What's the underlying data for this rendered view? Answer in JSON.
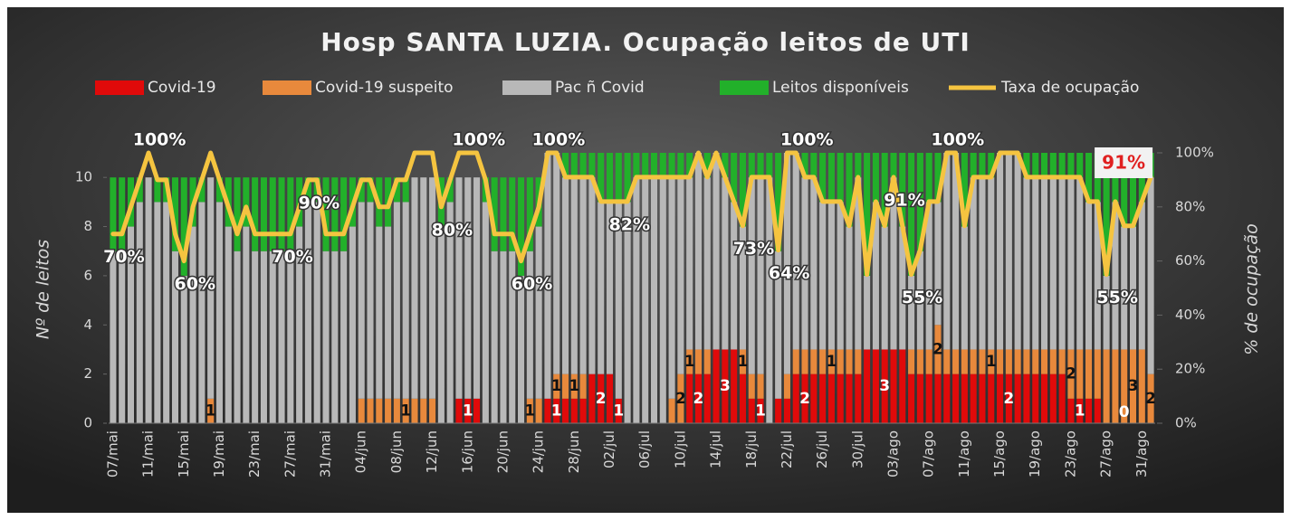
{
  "chart_data": {
    "type": "bar",
    "title": "Hosp SANTA LUZIA. Ocupação leitos de UTI",
    "y_label": "Nº de leitos",
    "y2_label": "% de ocupação",
    "stacked": true,
    "ylim": [
      0,
      11
    ],
    "yticks": [
      0,
      2,
      4,
      6,
      8,
      10
    ],
    "y2lim": [
      0,
      100
    ],
    "y2ticks": [
      {
        "value": 0,
        "label": "0%"
      },
      {
        "value": 20,
        "label": "20%"
      },
      {
        "value": 40,
        "label": "40%"
      },
      {
        "value": 60,
        "label": "60%"
      },
      {
        "value": 80,
        "label": "80%"
      },
      {
        "value": 100,
        "label": "100%"
      }
    ],
    "grid": false,
    "legend": "top",
    "categories": [
      "07/mai",
      null,
      null,
      null,
      "11/mai",
      null,
      null,
      null,
      "15/mai",
      null,
      null,
      null,
      "19/mai",
      null,
      null,
      null,
      "23/mai",
      null,
      null,
      null,
      "27/mai",
      null,
      null,
      null,
      "31/mai",
      null,
      null,
      null,
      "04/jun",
      null,
      null,
      null,
      "08/jun",
      null,
      null,
      null,
      "12/jun",
      null,
      null,
      null,
      "16/jun",
      null,
      null,
      null,
      "20/jun",
      null,
      null,
      null,
      "24/jun",
      null,
      null,
      null,
      "28/jun",
      null,
      null,
      null,
      "02/jul",
      null,
      null,
      null,
      "06/jul",
      null,
      null,
      null,
      "10/jul",
      null,
      null,
      null,
      "14/jul",
      null,
      null,
      null,
      "18/jul",
      null,
      null,
      null,
      "22/jul",
      null,
      null,
      null,
      "26/jul",
      null,
      null,
      null,
      "30/jul",
      null,
      null,
      null,
      "03/ago",
      null,
      null,
      null,
      "07/ago",
      null,
      null,
      null,
      "11/ago",
      null,
      null,
      null,
      "15/ago",
      null,
      null,
      null,
      "19/ago",
      null,
      null,
      null,
      "23/ago",
      null,
      null,
      null,
      "27/ago",
      null,
      null,
      null,
      "31/ago",
      null
    ],
    "series": [
      {
        "name": "Covid-19",
        "type": "bar",
        "color": "#e00a0a",
        "label_color": "#ffffff",
        "values": [
          0,
          0,
          0,
          0,
          0,
          0,
          0,
          0,
          0,
          0,
          0,
          0,
          0,
          0,
          0,
          0,
          0,
          0,
          0,
          0,
          0,
          0,
          0,
          0,
          0,
          0,
          0,
          0,
          0,
          0,
          0,
          0,
          0,
          0,
          0,
          0,
          0,
          0,
          0,
          1,
          1,
          1,
          0,
          0,
          0,
          0,
          0,
          0,
          0,
          1,
          1,
          1,
          1,
          1,
          2,
          2,
          2,
          1,
          0,
          0,
          0,
          0,
          0,
          0,
          0,
          2,
          2,
          2,
          3,
          3,
          3,
          2,
          1,
          1,
          0,
          1,
          1,
          2,
          2,
          2,
          2,
          2,
          2,
          2,
          2,
          3,
          3,
          3,
          3,
          3,
          2,
          2,
          2,
          2,
          2,
          2,
          2,
          2,
          2,
          2,
          2,
          2,
          2,
          2,
          2,
          2,
          2,
          2,
          1,
          1,
          1,
          1,
          0,
          0,
          0,
          0,
          0,
          0
        ],
        "value_labels": [
          null,
          null,
          null,
          null,
          null,
          null,
          null,
          null,
          null,
          null,
          null,
          null,
          null,
          null,
          null,
          null,
          null,
          null,
          null,
          null,
          null,
          null,
          null,
          null,
          null,
          null,
          null,
          null,
          null,
          null,
          null,
          null,
          null,
          null,
          null,
          null,
          null,
          null,
          null,
          null,
          "1",
          null,
          null,
          null,
          null,
          null,
          null,
          null,
          null,
          null,
          "1",
          null,
          null,
          null,
          null,
          "2",
          null,
          "1",
          null,
          null,
          null,
          null,
          null,
          null,
          null,
          null,
          "2",
          null,
          null,
          "3",
          null,
          null,
          null,
          "1",
          null,
          null,
          null,
          null,
          "2",
          null,
          null,
          null,
          null,
          null,
          null,
          null,
          null,
          "3",
          null,
          null,
          null,
          null,
          null,
          null,
          null,
          null,
          null,
          null,
          null,
          null,
          null,
          "2",
          null,
          null,
          null,
          null,
          null,
          null,
          null,
          "1",
          null,
          null,
          null,
          null,
          "0",
          null,
          null,
          null
        ]
      },
      {
        "name": "Covid-19 suspeito",
        "type": "bar",
        "color": "#e8893c",
        "label_color": "#111111",
        "values": [
          0,
          0,
          0,
          0,
          0,
          0,
          0,
          0,
          0,
          0,
          0,
          1,
          0,
          0,
          0,
          0,
          0,
          0,
          0,
          0,
          0,
          0,
          0,
          0,
          0,
          0,
          0,
          0,
          1,
          1,
          1,
          1,
          1,
          1,
          1,
          1,
          1,
          0,
          0,
          0,
          0,
          0,
          0,
          0,
          0,
          0,
          0,
          1,
          1,
          0,
          1,
          1,
          1,
          1,
          0,
          0,
          0,
          0,
          0,
          0,
          0,
          0,
          0,
          1,
          2,
          1,
          1,
          1,
          0,
          0,
          0,
          1,
          1,
          1,
          0,
          0,
          1,
          1,
          1,
          1,
          1,
          1,
          1,
          1,
          1,
          0,
          0,
          0,
          0,
          0,
          1,
          1,
          1,
          2,
          1,
          1,
          1,
          1,
          1,
          1,
          1,
          1,
          1,
          1,
          1,
          1,
          1,
          1,
          2,
          2,
          2,
          2,
          3,
          3,
          3,
          3,
          3,
          2
        ],
        "value_labels": [
          null,
          null,
          null,
          null,
          null,
          null,
          null,
          null,
          null,
          null,
          null,
          "1",
          null,
          null,
          null,
          null,
          null,
          null,
          null,
          null,
          null,
          null,
          null,
          null,
          null,
          null,
          null,
          null,
          null,
          null,
          null,
          null,
          null,
          "1",
          null,
          null,
          null,
          null,
          null,
          null,
          null,
          null,
          null,
          null,
          null,
          null,
          null,
          "1",
          null,
          null,
          "1",
          null,
          "1",
          null,
          null,
          null,
          null,
          null,
          null,
          null,
          null,
          null,
          null,
          null,
          "2",
          "1",
          null,
          null,
          null,
          null,
          null,
          "1",
          null,
          null,
          null,
          null,
          null,
          null,
          null,
          null,
          null,
          "1",
          null,
          null,
          null,
          null,
          null,
          null,
          null,
          null,
          null,
          null,
          null,
          "2",
          null,
          null,
          null,
          null,
          null,
          "1",
          null,
          null,
          null,
          null,
          null,
          null,
          null,
          null,
          "2",
          null,
          null,
          null,
          null,
          null,
          null,
          "3",
          null,
          "2"
        ]
      },
      {
        "name": "Pac ñ Covid",
        "type": "bar",
        "color": "#b8b8b8",
        "values": [
          7,
          7,
          8,
          9,
          10,
          9,
          9,
          7,
          6,
          8,
          9,
          9,
          9,
          8,
          7,
          8,
          7,
          7,
          7,
          7,
          7,
          8,
          9,
          9,
          7,
          7,
          7,
          8,
          8,
          8,
          7,
          7,
          8,
          8,
          9,
          9,
          9,
          8,
          9,
          9,
          9,
          9,
          9,
          7,
          7,
          7,
          6,
          6,
          7,
          10,
          9,
          8,
          8,
          8,
          8,
          7,
          7,
          8,
          9,
          10,
          10,
          10,
          10,
          9,
          8,
          7,
          8,
          7,
          8,
          7,
          6,
          5,
          8,
          8,
          10,
          6,
          9,
          8,
          7,
          7,
          6,
          6,
          6,
          5,
          7,
          3,
          6,
          5,
          7,
          5,
          3,
          4,
          6,
          5,
          8,
          8,
          5,
          7,
          7,
          7,
          8,
          8,
          8,
          7,
          7,
          7,
          7,
          7,
          7,
          7,
          6,
          6,
          3,
          6,
          5,
          5,
          6,
          8
        ]
      },
      {
        "name": "Leitos disponíveis",
        "type": "bar",
        "color": "#22b02a",
        "values": [
          3,
          3,
          2,
          1,
          0,
          1,
          1,
          3,
          4,
          2,
          1,
          0,
          1,
          2,
          3,
          2,
          3,
          3,
          3,
          3,
          3,
          2,
          1,
          1,
          3,
          3,
          3,
          2,
          1,
          1,
          2,
          2,
          1,
          1,
          0,
          0,
          0,
          2,
          1,
          0,
          0,
          0,
          1,
          3,
          3,
          3,
          4,
          3,
          2,
          0,
          0,
          1,
          1,
          1,
          1,
          2,
          2,
          2,
          2,
          1,
          1,
          1,
          1,
          1,
          1,
          1,
          0,
          1,
          0,
          1,
          2,
          3,
          1,
          1,
          1,
          4,
          0,
          0,
          1,
          1,
          2,
          2,
          2,
          3,
          1,
          5,
          2,
          3,
          1,
          3,
          5,
          4,
          2,
          2,
          0,
          0,
          3,
          1,
          1,
          1,
          0,
          0,
          0,
          1,
          1,
          1,
          1,
          1,
          1,
          1,
          2,
          2,
          5,
          2,
          3,
          3,
          2,
          1
        ]
      },
      {
        "name": "Taxa de ocupação",
        "type": "line",
        "axis": "y2",
        "color": "#f5c440",
        "values": [
          70,
          70,
          80,
          90,
          100,
          90,
          90,
          70,
          60,
          80,
          90,
          100,
          90,
          80,
          70,
          80,
          70,
          70,
          70,
          70,
          70,
          80,
          90,
          90,
          70,
          70,
          70,
          80,
          90,
          90,
          80,
          80,
          90,
          90,
          100,
          100,
          100,
          80,
          90,
          100,
          100,
          100,
          90,
          70,
          70,
          70,
          60,
          70,
          80,
          100,
          100,
          91,
          91,
          91,
          91,
          82,
          82,
          82,
          82,
          91,
          91,
          91,
          91,
          91,
          91,
          91,
          100,
          91,
          100,
          91,
          82,
          73,
          91,
          91,
          91,
          64,
          100,
          100,
          91,
          91,
          82,
          82,
          82,
          73,
          91,
          55,
          82,
          73,
          91,
          73,
          55,
          64,
          82,
          82,
          100,
          100,
          73,
          91,
          91,
          91,
          100,
          100,
          100,
          91,
          91,
          91,
          91,
          91,
          91,
          91,
          82,
          82,
          55,
          82,
          73,
          73,
          82,
          91
        ],
        "value_labels": [
          "70%",
          null,
          null,
          null,
          "100%",
          null,
          null,
          null,
          "60%",
          null,
          null,
          null,
          null,
          null,
          null,
          null,
          null,
          null,
          null,
          "70%",
          null,
          null,
          "90%",
          null,
          null,
          null,
          null,
          null,
          null,
          null,
          null,
          null,
          null,
          null,
          null,
          null,
          null,
          "80%",
          null,
          null,
          "100%",
          null,
          null,
          null,
          null,
          null,
          "60%",
          null,
          null,
          "100%",
          null,
          null,
          null,
          null,
          null,
          null,
          null,
          "82%",
          null,
          null,
          null,
          null,
          null,
          null,
          null,
          null,
          null,
          null,
          null,
          null,
          null,
          "73%",
          null,
          null,
          null,
          "64%",
          null,
          "100%",
          null,
          null,
          null,
          null,
          null,
          null,
          null,
          null,
          null,
          null,
          "91%",
          null,
          "55%",
          null,
          null,
          null,
          "100%",
          null,
          null,
          null,
          null,
          null,
          null,
          null,
          null,
          null,
          null,
          null,
          null,
          null,
          null,
          null,
          null,
          null,
          "55%",
          null,
          null,
          null,
          null,
          "91%"
        ]
      }
    ]
  }
}
